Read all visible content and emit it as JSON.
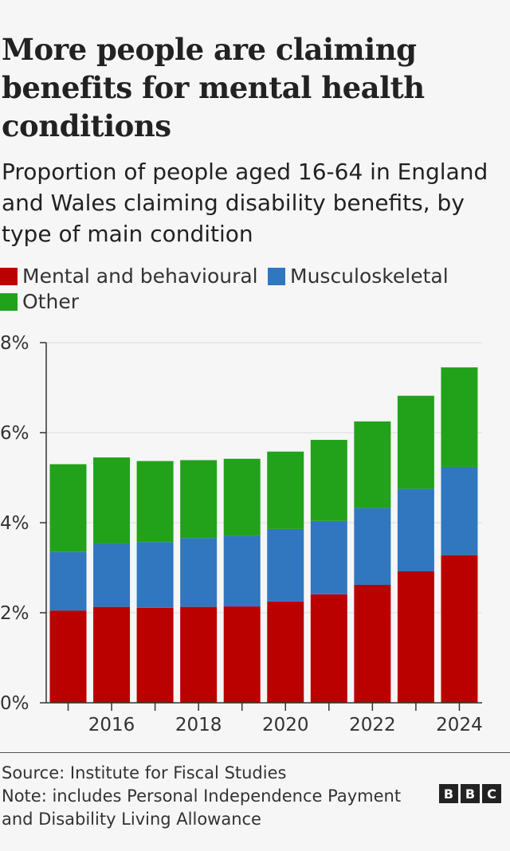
{
  "title": "More people are claiming benefits for mental health conditions",
  "subtitle": "Proportion of people aged 16-64 in England and Wales claiming disability benefits, by type of main condition",
  "legend": [
    {
      "label": "Mental and behavioural",
      "color": "#bb0000"
    },
    {
      "label": "Musculoskeletal",
      "color": "#3077c0"
    },
    {
      "label": "Other",
      "color": "#22a21b"
    }
  ],
  "chart_data": {
    "type": "bar",
    "stacked": true,
    "x": [
      2015,
      2016,
      2017,
      2018,
      2019,
      2020,
      2021,
      2022,
      2023,
      2024
    ],
    "x_tick_labels": [
      "2016",
      "2018",
      "2020",
      "2022",
      "2024"
    ],
    "x_tick_values": [
      2016,
      2018,
      2020,
      2022,
      2024
    ],
    "y_tick_labels": [
      "0%",
      "2%",
      "4%",
      "6%",
      "8%"
    ],
    "y_tick_values": [
      0,
      2,
      4,
      6,
      8
    ],
    "ylim": [
      0,
      8
    ],
    "grid": "horizontal",
    "legend_position": "top",
    "series": [
      {
        "name": "Mental and behavioural",
        "color": "#bb0000",
        "values": [
          2.05,
          2.13,
          2.11,
          2.13,
          2.14,
          2.25,
          2.41,
          2.62,
          2.92,
          3.28
        ]
      },
      {
        "name": "Musculoskeletal",
        "color": "#3077c0",
        "values": [
          1.3,
          1.4,
          1.46,
          1.53,
          1.57,
          1.61,
          1.63,
          1.71,
          1.83,
          1.96
        ]
      },
      {
        "name": "Other",
        "color": "#22a21b",
        "values": [
          1.95,
          1.92,
          1.8,
          1.73,
          1.71,
          1.72,
          1.8,
          1.92,
          2.07,
          2.21
        ]
      }
    ]
  },
  "footer": {
    "source": "Source: Institute for Fiscal Studies",
    "note_line1": "Note: includes Personal Independence Payment",
    "note_line2": "and Disability Living Allowance"
  },
  "logo": {
    "letters": [
      "B",
      "B",
      "C"
    ]
  }
}
